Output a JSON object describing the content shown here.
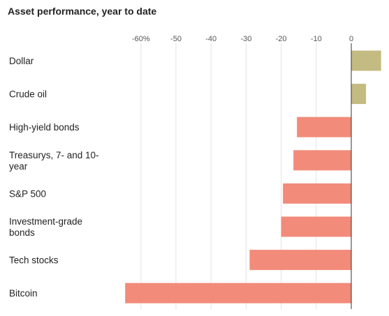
{
  "chart_data": {
    "type": "bar",
    "orientation": "horizontal",
    "title": "Asset performance, year to date",
    "categories": [
      "Dollar",
      "Crude oil",
      "High-yield bonds",
      "Treasurys, 7- and 10-year",
      "S&P 500",
      "Investment-grade bonds",
      "Tech stocks",
      "Bitcoin"
    ],
    "category_lines": [
      [
        "Dollar"
      ],
      [
        "Crude oil"
      ],
      [
        "High-yield bonds"
      ],
      [
        "Treasurys, 7- and 10-",
        "year"
      ],
      [
        "S&P 500"
      ],
      [
        "Investment-grade",
        "bonds"
      ],
      [
        "Tech stocks"
      ],
      [
        "Bitcoin"
      ]
    ],
    "values": [
      8.5,
      4.2,
      -15.5,
      -16.5,
      -19.5,
      -20,
      -29,
      -64.5
    ],
    "xlim": [
      -65,
      9
    ],
    "xticks": [
      -60,
      -50,
      -40,
      -30,
      -20,
      -10,
      0
    ],
    "xtick_labels": [
      "-60%",
      "-50",
      "-40",
      "-30",
      "-20",
      "-10",
      "0"
    ],
    "grid": true,
    "colors": {
      "positive": "#c4bb82",
      "negative": "#f28b7a"
    }
  }
}
